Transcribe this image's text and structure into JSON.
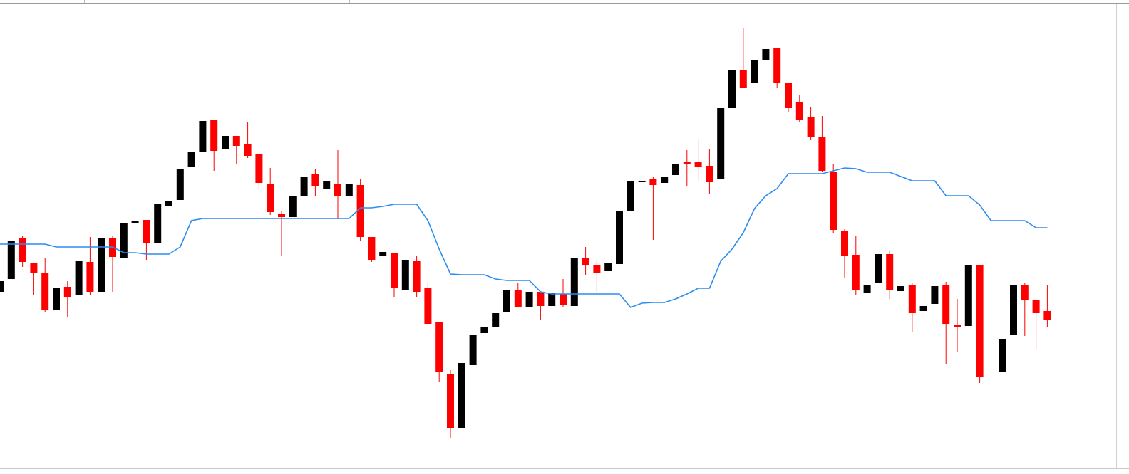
{
  "chart_data": {
    "type": "candlestick",
    "up_color": "#000000",
    "down_color": "#ff0000",
    "ylim": [
      0,
      660
    ],
    "open": [
      250,
      268,
      325,
      291,
      277,
      225,
      257,
      245,
      292,
      250,
      325,
      298,
      346,
      351,
      318,
      370,
      379,
      425,
      447,
      492,
      450,
      469,
      458,
      443,
      402,
      360,
      355,
      385,
      415,
      395,
      402,
      385,
      400,
      327,
      301,
      305,
      252,
      293,
      255,
      207,
      135,
      58,
      147,
      192,
      200,
      222,
      253,
      228,
      250,
      230,
      247,
      230,
      298,
      287,
      279,
      289,
      363,
      404,
      408,
      403,
      414,
      432,
      432,
      427,
      408,
      508,
      562,
      543,
      576,
      593,
      543,
      516,
      495,
      468,
      419,
      335,
      302,
      248,
      262,
      303,
      251,
      260,
      223,
      233,
      260,
      203,
      202,
      287,
      null,
      137,
      189,
      260,
      239,
      223
    ],
    "high": [
      265,
      322,
      328,
      291,
      298,
      255,
      265,
      293,
      327,
      325,
      328,
      347,
      350,
      351,
      373,
      377,
      423,
      446,
      490,
      492,
      469,
      469,
      488,
      443,
      424,
      363,
      385,
      412,
      422,
      405,
      449,
      402,
      408,
      327,
      306,
      305,
      294,
      300,
      262,
      207,
      140,
      150,
      190,
      200,
      220,
      252,
      263,
      250,
      250,
      248,
      268,
      297,
      313,
      295,
      290,
      363,
      405,
      406,
      412,
      412,
      430,
      449,
      464,
      450,
      508,
      562,
      620,
      575,
      591,
      593,
      543,
      526,
      510,
      497,
      430,
      338,
      328,
      260,
      303,
      308,
      258,
      262,
      230,
      258,
      264,
      240,
      287,
      287,
      null,
      183,
      260,
      262,
      239,
      260
    ],
    "low": [
      250,
      268,
      285,
      245,
      222,
      225,
      214,
      245,
      245,
      250,
      250,
      298,
      346,
      295,
      318,
      370,
      379,
      425,
      447,
      420,
      450,
      430,
      438,
      394,
      358,
      300,
      355,
      385,
      385,
      395,
      352,
      385,
      322,
      292,
      301,
      242,
      252,
      242,
      205,
      123,
      45,
      58,
      147,
      192,
      200,
      222,
      228,
      228,
      210,
      230,
      228,
      230,
      273,
      250,
      279,
      289,
      363,
      404,
      323,
      403,
      414,
      398,
      405,
      387,
      408,
      508,
      537,
      543,
      576,
      536,
      503,
      488,
      463,
      418,
      332,
      270,
      246,
      248,
      262,
      240,
      251,
      193,
      223,
      233,
      148,
      165,
      202,
      122,
      null,
      137,
      189,
      188,
      170,
      200
    ],
    "close": [
      265,
      322,
      292,
      277,
      225,
      255,
      243,
      293,
      250,
      325,
      299,
      347,
      350,
      318,
      373,
      377,
      423,
      446,
      490,
      448,
      469,
      455,
      441,
      403,
      362,
      355,
      385,
      412,
      398,
      405,
      385,
      402,
      327,
      295,
      306,
      255,
      294,
      250,
      205,
      137,
      58,
      150,
      190,
      200,
      220,
      252,
      228,
      250,
      230,
      248,
      232,
      297,
      288,
      276,
      290,
      363,
      405,
      406,
      400,
      412,
      430,
      429,
      426,
      404,
      508,
      562,
      537,
      575,
      591,
      543,
      508,
      491,
      468,
      420,
      337,
      300,
      252,
      260,
      303,
      252,
      258,
      220,
      230,
      258,
      205,
      200,
      287,
      130,
      null,
      183,
      260,
      239,
      220,
      211
    ],
    "ma": {
      "color": "#2a8cf0",
      "values": [
        317,
        317,
        317,
        317,
        317,
        313,
        313,
        313,
        313,
        313,
        313,
        305,
        305,
        303,
        303,
        303,
        313,
        350,
        353,
        353,
        353,
        353,
        353,
        353,
        353,
        353,
        353,
        353,
        353,
        353,
        353,
        353,
        368,
        368,
        370,
        373,
        373,
        373,
        350,
        310,
        275,
        274,
        274,
        274,
        268,
        266,
        266,
        266,
        250,
        247,
        247,
        247,
        247,
        247,
        247,
        247,
        228,
        234,
        235,
        235,
        240,
        247,
        255,
        255,
        293,
        310,
        333,
        367,
        385,
        395,
        416,
        416,
        416,
        416,
        420,
        424,
        423,
        418,
        418,
        418,
        412,
        406,
        406,
        406,
        385,
        385,
        385,
        372,
        350,
        350,
        350,
        350,
        340,
        340
      ]
    }
  }
}
